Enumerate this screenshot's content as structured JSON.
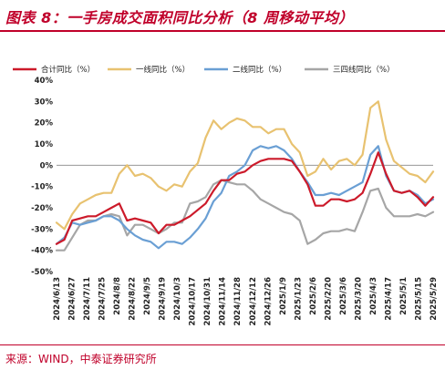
{
  "title": "图表 8：一手房成交面积同比分析（8 周移动平均）",
  "source": "来源：WIND，中泰证券研究所",
  "chart_data": {
    "type": "line",
    "ylim": [
      -50,
      40
    ],
    "yticks": [
      40,
      30,
      20,
      10,
      0,
      -10,
      -20,
      -30,
      -40,
      -50
    ],
    "ytick_labels": [
      "40%",
      "30%",
      "20%",
      "10%",
      "0%",
      "-10%",
      "-20%",
      "-30%",
      "-40%",
      "-50%"
    ],
    "xtick_labels": [
      "2024/6/13",
      "2024/6/27",
      "2024/7/11",
      "2024/7/25",
      "2024/8/8",
      "2024/8/22",
      "2024/9/5",
      "2024/9/19",
      "2024/10/3",
      "2024/10/17",
      "2024/10/31",
      "2024/11/14",
      "2024/11/28",
      "2024/12/12",
      "2024/12/26",
      "2025/1/9",
      "2025/1/23",
      "2025/2/6",
      "2025/2/20",
      "2025/3/6",
      "2025/3/20",
      "2025/4/3",
      "2025/4/17",
      "2025/5/1",
      "2025/5/15",
      "2025/5/29"
    ],
    "series": [
      {
        "name": "合计同比（%）",
        "color": "#cc1a2a",
        "values": [
          -37,
          -35,
          -26,
          -25,
          -24,
          -24,
          -22,
          -20,
          -18,
          -26,
          -25,
          -26,
          -27,
          -32,
          -28,
          -28,
          -26,
          -24,
          -21,
          -18,
          -12,
          -7,
          -7,
          -4,
          -3,
          0,
          2,
          3,
          3,
          3,
          2,
          -3,
          -9,
          -19,
          -19,
          -16,
          -16,
          -17,
          -16,
          -13,
          -4,
          6,
          -4,
          -12,
          -13,
          -12,
          -15,
          -19,
          -15
        ]
      },
      {
        "name": "一线同比（%）",
        "color": "#e8c270",
        "values": [
          -27,
          -30,
          -23,
          -18,
          -16,
          -14,
          -13,
          -13,
          -4,
          0,
          -5,
          -4,
          -6,
          -10,
          -12,
          -9,
          -10,
          -3,
          1,
          13,
          21,
          17,
          20,
          22,
          21,
          18,
          18,
          15,
          17,
          17,
          10,
          6,
          -5,
          -3,
          3,
          -2,
          2,
          3,
          0,
          5,
          27,
          30,
          12,
          2,
          -1,
          -4,
          -5,
          -8,
          -3
        ]
      },
      {
        "name": "二线同比（%）",
        "color": "#6a9fd4",
        "values": [
          -37,
          -34,
          -27,
          -28,
          -27,
          -26,
          -24,
          -24,
          -26,
          -30,
          -33,
          -35,
          -36,
          -39,
          -36,
          -36,
          -37,
          -34,
          -30,
          -25,
          -17,
          -13,
          -5,
          -3,
          0,
          7,
          9,
          8,
          9,
          7,
          3,
          -3,
          -8,
          -14,
          -14,
          -13,
          -14,
          -12,
          -10,
          -8,
          5,
          9,
          -5,
          -12,
          -13,
          -12,
          -14,
          -18,
          -16
        ]
      },
      {
        "name": "三四线同比（%）",
        "color": "#a6a6a6",
        "values": [
          -40,
          -40,
          -34,
          -28,
          -26,
          -26,
          -24,
          -23,
          -24,
          -33,
          -28,
          -28,
          -30,
          -32,
          -30,
          -27,
          -27,
          -18,
          -17,
          -15,
          -9,
          -7,
          -8,
          -9,
          -9,
          -12,
          -16,
          -18,
          -20,
          -22,
          -23,
          -26,
          -37,
          -35,
          -32,
          -31,
          -31,
          -30,
          -31,
          -22,
          -12,
          -11,
          -20,
          -24,
          -24,
          -24,
          -23,
          -24,
          -22
        ]
      }
    ]
  }
}
